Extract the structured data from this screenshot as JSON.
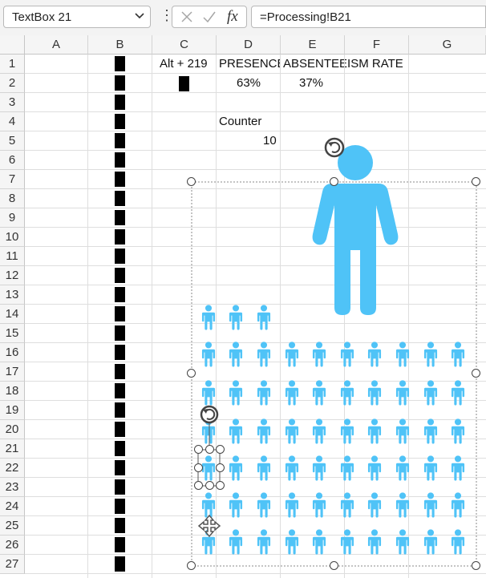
{
  "name_box": {
    "value": "TextBox 21"
  },
  "formula_bar": {
    "value": "=Processing!B21"
  },
  "columns": [
    "A",
    "B",
    "C",
    "D",
    "E",
    "F",
    "G"
  ],
  "rows": [
    "1",
    "2",
    "3",
    "4",
    "5",
    "6",
    "7",
    "8",
    "9",
    "10",
    "11",
    "12",
    "13",
    "14",
    "15",
    "16",
    "17",
    "18",
    "19",
    "20",
    "21",
    "22",
    "23",
    "24",
    "25",
    "26",
    "27"
  ],
  "cells": {
    "c1": "Alt + 219",
    "d1": "PRESENCE",
    "e1": "ABSENTEEISM RATE",
    "d2": "63%",
    "e2": "37%",
    "d4": "Counter",
    "d5": "10"
  },
  "person_color": "#4fc3f7",
  "presence_rate": 0.63,
  "absenteeism_rate": 0.37,
  "icons": {
    "name_box_dropdown": "chevron-down-icon",
    "cancel": "cancel-icon",
    "enter": "check-icon",
    "insert_function": "fx-icon",
    "figure": "person-icon",
    "rotate": "rotate-handle-icon",
    "move": "move-icon"
  }
}
